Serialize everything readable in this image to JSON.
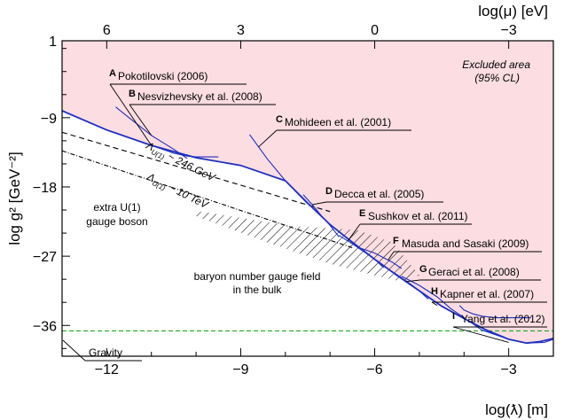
{
  "chart_data": {
    "type": "line",
    "xlabel": "log(ƛ) [m]",
    "ylabel": "log g² [GeV⁻²]",
    "top_axis_label": "log(μ) [eV]",
    "xlim": [
      -13,
      -2
    ],
    "ylim": [
      -40,
      1
    ],
    "x_ticks": [
      -12,
      -9,
      -6,
      -3
    ],
    "x_tick_labels": [
      "−12",
      "−9",
      "−6",
      "−3"
    ],
    "y_ticks": [
      1,
      -9,
      -18,
      -27,
      -36
    ],
    "y_tick_labels": [
      "1",
      "−9",
      "−18",
      "−27",
      "−36"
    ],
    "top_ticks": [
      6,
      3,
      0,
      -3
    ],
    "top_tick_labels": [
      "6",
      "3",
      "0",
      "−3"
    ],
    "excluded_area_label": [
      "Excluded area",
      "(95% CL)"
    ],
    "colors": {
      "excluded_fill": "#fbdde2",
      "bound": "#1f2fbf",
      "experiment": "#1f2fbf",
      "gravity": "#00a000",
      "theory": "#000000"
    },
    "combined_bound": {
      "x": [
        -13,
        -12,
        -11,
        -10,
        -9,
        -8,
        -7.5,
        -7,
        -6.5,
        -6,
        -5.5,
        -5,
        -4.5,
        -4,
        -3.5,
        -3,
        -2.6,
        -2.3,
        -2
      ],
      "y": [
        -8.1,
        -10.6,
        -12.6,
        -14.2,
        -15.2,
        -17.2,
        -20.1,
        -22.9,
        -25.2,
        -27.4,
        -29.5,
        -31.5,
        -33.5,
        -35.1,
        -36.6,
        -37.8,
        -38.3,
        -38.1,
        -37.7
      ]
    },
    "gravity_line": {
      "y": -36.7
    },
    "experiments": [
      {
        "letter": "A",
        "name": "Pokotilovski (2006)",
        "x": [
          -13,
          -12,
          -11,
          -10.5,
          -10.2,
          -10,
          -9.5
        ],
        "y": [
          -8.1,
          -10.6,
          -12.6,
          -13.6,
          -14.0,
          -14.1,
          -14.1
        ]
      },
      {
        "letter": "B",
        "name": "Nesvizhevsky et al. (2008)",
        "x": [
          -11.8,
          -11.5,
          -11,
          -10.5,
          -10.2
        ],
        "y": [
          -7.6,
          -9.0,
          -11.3,
          -13.1,
          -14.3
        ]
      },
      {
        "letter": "C",
        "name": "Mohideen et al. (2001)",
        "x": [
          -8.8,
          -8.4,
          -8,
          -7.7,
          -7.5
        ],
        "y": [
          -11.2,
          -14.4,
          -17.2,
          -19.0,
          -20.2
        ]
      },
      {
        "letter": "D",
        "name": "Decca et al. (2005)",
        "x": [
          -7.6,
          -7.4,
          -7.2,
          -7.0,
          -6.8
        ],
        "y": [
          -19.0,
          -20.3,
          -21.7,
          -23.0,
          -24.5
        ]
      },
      {
        "letter": "E",
        "name": "Sushkov et al. (2011)",
        "x": [
          -6.8,
          -6.5,
          -6.2,
          -6.0,
          -5.8
        ],
        "y": [
          -24.3,
          -25.4,
          -26.6,
          -27.4,
          -28.5
        ]
      },
      {
        "letter": "F",
        "name": "Masuda and Sasaki (2009)",
        "x": [
          -6.3,
          -6.0,
          -5.6,
          -5.4
        ],
        "y": [
          -26.0,
          -26.6,
          -27.8,
          -28.6
        ]
      },
      {
        "letter": "G",
        "name": "Geraci et al. (2008)",
        "x": [
          -5.8,
          -5.5,
          -5.2,
          -5.0,
          -4.8
        ],
        "y": [
          -28.3,
          -29.4,
          -30.6,
          -31.5,
          -32.6
        ]
      },
      {
        "letter": "H",
        "name": "Kapner et al. (2007)",
        "x": [
          -5.4,
          -5.0,
          -4.6,
          -4.3,
          -4.0,
          -3.6,
          -3.0,
          -2.6,
          -2.2,
          -2.0
        ],
        "y": [
          -29.6,
          -30.8,
          -32.3,
          -33.8,
          -35.0,
          -36.6,
          -37.8,
          -38.3,
          -38.2,
          -37.8
        ]
      },
      {
        "letter": "I",
        "name": "Yang et al. (2012)",
        "x": [
          -4.1,
          -4.0,
          -3.8,
          -3.6,
          -3.3,
          -2.5
        ],
        "y": [
          -33.4,
          -34.0,
          -34.5,
          -34.8,
          -35.0,
          -35.0
        ]
      }
    ],
    "theory_lines": [
      {
        "name": "Λ_U(1) ~ 246 GeV",
        "x": [
          -13,
          -7
        ],
        "y": [
          -10.9,
          -21.2
        ],
        "dash": "6,4"
      },
      {
        "name": "Λ_U(1) ~ 10 TeV",
        "x": [
          -13,
          -6.5
        ],
        "y": [
          -13.3,
          -25.9
        ],
        "dash": "5,2,1,2"
      }
    ],
    "hatched_region": {
      "label": [
        "baryon number gauge field",
        "in the bulk"
      ],
      "x": [
        -10,
        -7.8,
        -6.4,
        -5.6,
        -5.0,
        -5.4,
        -6.0,
        -7.0,
        -8.5,
        -10
      ],
      "y": [
        -21.1,
        -23.1,
        -23.6,
        -25.2,
        -29.5,
        -30.3,
        -29.5,
        -28.0,
        -25.0,
        -21.8
      ]
    },
    "labels": {
      "lambda_246": [
        "Λ",
        "U(1)",
        " ~ 246 GeV"
      ],
      "lambda_10": [
        "Λ",
        "U(1)",
        " ~ 10 TeV"
      ],
      "extra_u1": [
        "extra U(1)",
        "gauge boson"
      ],
      "gravity": "Gravity"
    }
  }
}
